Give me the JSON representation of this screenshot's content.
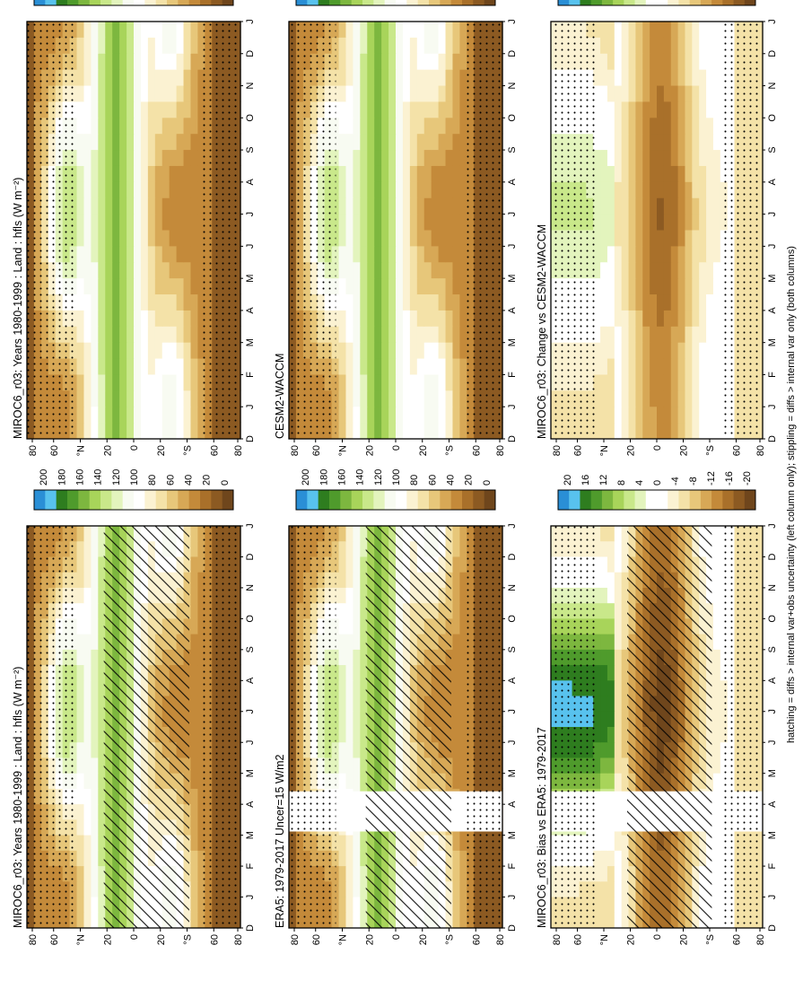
{
  "footer": "hatching = diffs > internal var+obs uncertainty (left column only); stippling = diffs > internal var only (both columns)",
  "colors": {
    "abs_scale": [
      "#2a8fd6",
      "#58c2ee",
      "#2e7d1f",
      "#4f9b2c",
      "#7db73f",
      "#a8d45a",
      "#c9e88a",
      "#e3f4bd",
      "#f8fbf2",
      "#ffffff",
      "#fbf2d2",
      "#f4e2a8",
      "#e7c77a",
      "#d7a856",
      "#c48a3a",
      "#a9702a",
      "#8c5a22",
      "#6f461c"
    ],
    "diff_scale": [
      "#2a8fd6",
      "#58c2ee",
      "#2e7d1f",
      "#4f9b2c",
      "#7db73f",
      "#a8d45a",
      "#c9e88a",
      "#e3f4bd",
      "#ffffff",
      "#ffffff",
      "#fbf2d2",
      "#f4e2a8",
      "#e7c77a",
      "#d7a856",
      "#c48a3a",
      "#a9702a",
      "#8c5a22",
      "#6f461c"
    ]
  },
  "panels": [
    {
      "id": "top-left",
      "title": "MIROC6_r03: Years 1980-1999 : Land : hfls (W m⁻²)",
      "kind": "abs",
      "hatch": true,
      "stipple": true,
      "gap": false
    },
    {
      "id": "top-right",
      "title": "MIROC6_r03: Years 1980-1999 : Land : hfls (W m⁻²)",
      "kind": "abs",
      "hatch": false,
      "stipple": true,
      "gap": false
    },
    {
      "id": "mid-left",
      "title": "ERA5: 1979-2017 Uncer=15 W/m2",
      "kind": "abs",
      "hatch": true,
      "stipple": true,
      "gap": true
    },
    {
      "id": "mid-right",
      "title": "CESM2-WACCM",
      "kind": "abs",
      "hatch": false,
      "stipple": true,
      "gap": false
    },
    {
      "id": "bot-left",
      "title": "MIROC6_r03: Bias vs ERA5: 1979-2017",
      "kind": "diff",
      "hatch": true,
      "stipple": true,
      "gap": true
    },
    {
      "id": "bot-right",
      "title": "MIROC6_r03: Change vs CESM2-WACCM",
      "kind": "diff",
      "hatch": false,
      "stipple": true,
      "gap": false
    }
  ],
  "chart_data": {
    "type": "heatmap",
    "x_label": "",
    "y_label": "",
    "months": [
      "D",
      "J",
      "F",
      "M",
      "A",
      "M",
      "J",
      "J",
      "A",
      "S",
      "O",
      "N",
      "D",
      "J"
    ],
    "lat_ticks": [
      "80",
      "60",
      "°N",
      "20",
      "0",
      "20",
      "°S",
      "60",
      "80"
    ],
    "colorbar_abs": {
      "ticks": [
        "200",
        "180",
        "160",
        "140",
        "120",
        "100",
        "80",
        "60",
        "40",
        "20",
        "0"
      ]
    },
    "colorbar_diff": {
      "ticks": [
        "20",
        "16",
        "12",
        "8",
        "4",
        "0",
        "-4",
        "-8",
        "-12",
        "-16",
        "-20"
      ]
    }
  }
}
